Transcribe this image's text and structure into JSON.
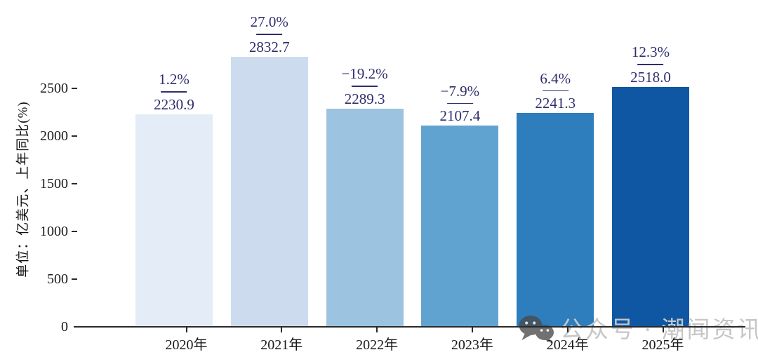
{
  "chart_data": {
    "type": "bar",
    "title": "",
    "categories": [
      "2020年",
      "2021年",
      "2022年",
      "2023年",
      "2024年",
      "2025年"
    ],
    "values": [
      2230.9,
      2832.7,
      2289.3,
      2107.4,
      2241.3,
      2518.0
    ],
    "value_labels": [
      "2230.9",
      "2832.7",
      "2289.3",
      "2107.4",
      "2241.3",
      "2518.0"
    ],
    "growth_labels": [
      "1.2%",
      "27.0%",
      "−19.2%",
      "−7.9%",
      "6.4%",
      "12.3%"
    ],
    "xlabel": "",
    "ylabel": "单位：亿美元、上年同比(%)",
    "yticks": [
      0,
      500,
      1000,
      1500,
      2000,
      2500
    ],
    "ylim": [
      0,
      2900
    ],
    "grid": false,
    "legend_position": "none",
    "bar_colors": [
      "#e4edf7",
      "#ccdcee",
      "#9cc4e0",
      "#61a3d0",
      "#2e7dbc",
      "#0f57a3"
    ],
    "annotation_color": "#2e2e6e",
    "axis_color": "#2a2a2a",
    "tick_label_color": "#1a1a1a"
  },
  "watermark": {
    "icon": "wechat-icon",
    "text": "公众号 · 潮闻资讯",
    "text_color": "#c6c6c6",
    "icon_color": "#4a4a4a"
  }
}
